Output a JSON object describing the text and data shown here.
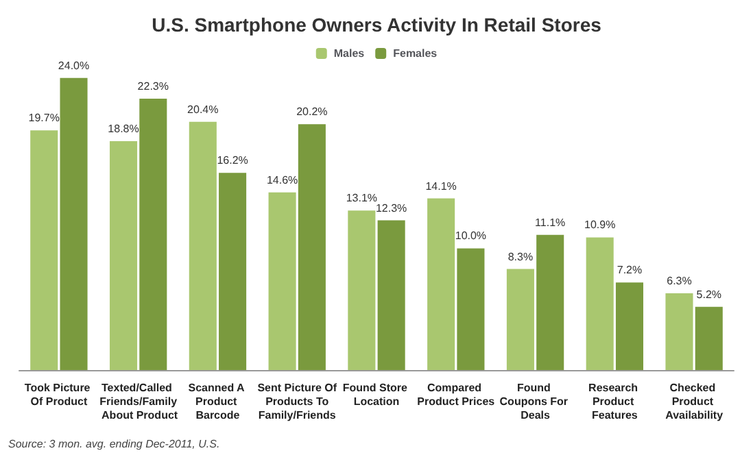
{
  "chart_data": {
    "type": "bar",
    "title": "U.S. Smartphone Owners Activity In Retail Stores",
    "categories": [
      "Took Picture Of Product",
      "Texted/Called Friends/Family About Product",
      "Scanned A Product Barcode",
      "Sent Picture Of Products To Family/Friends",
      "Found Store Location",
      "Compared Product Prices",
      "Found Coupons For Deals",
      "Research Product Features",
      "Checked Product Availability"
    ],
    "series": [
      {
        "name": "Males",
        "color": "#a9c76f",
        "values": [
          19.7,
          18.8,
          20.4,
          14.6,
          13.1,
          14.1,
          8.3,
          10.9,
          6.3
        ],
        "value_labels": [
          "19.7%",
          "18.8%",
          "20.4%",
          "14.6%",
          "13.1%",
          "14.1%",
          "8.3%",
          "10.9%",
          "6.3%"
        ]
      },
      {
        "name": "Females",
        "color": "#7a9a3e",
        "values": [
          24.0,
          22.3,
          16.2,
          20.2,
          12.3,
          10.0,
          11.1,
          7.2,
          5.2
        ],
        "value_labels": [
          "24.0%",
          "22.3%",
          "16.2%",
          "20.2%",
          "12.3%",
          "10.0%",
          "11.1%",
          "7.2%",
          "5.2%"
        ]
      }
    ],
    "legend": "top",
    "annotations": [
      "Source: 3 mon. avg. ending Dec-2011, U.S."
    ]
  }
}
